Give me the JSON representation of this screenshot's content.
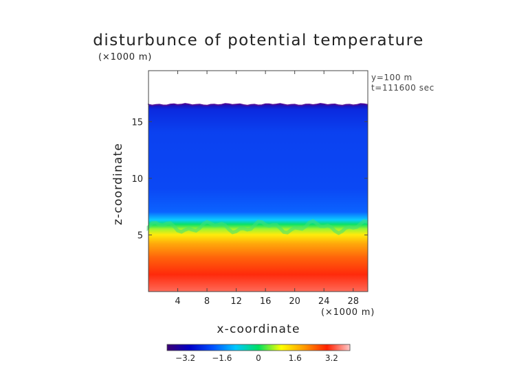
{
  "chart_data": {
    "type": "heatmap",
    "title": "disturbunce of potential temperature",
    "y_unit_label": "(×1000 m)",
    "x_unit_label": "(×1000 m)",
    "xlabel": "x-coordinate",
    "ylabel": "z-coordinate",
    "annotations": [
      "y=100 m",
      "t=111600 sec"
    ],
    "xlim": [
      0,
      30
    ],
    "ylim": [
      0,
      19.5
    ],
    "x_ticks": [
      4,
      8,
      12,
      16,
      20,
      24,
      28
    ],
    "y_ticks": [
      5,
      10,
      15
    ],
    "data_top_z": 16.5,
    "colorbar": {
      "range": [
        -4,
        4
      ],
      "tick_values": [
        -3.2,
        -1.6,
        0,
        1.6,
        3.2
      ],
      "tick_labels": [
        "−3.2",
        "−1.6",
        "0",
        "1.6",
        "3.2"
      ]
    },
    "profile": [
      {
        "z": 0.0,
        "value": 3.4
      },
      {
        "z": 1.5,
        "value": 3.0
      },
      {
        "z": 3.0,
        "value": 2.5
      },
      {
        "z": 4.2,
        "value": 1.9
      },
      {
        "z": 5.0,
        "value": 1.2
      },
      {
        "z": 5.5,
        "value": 0.6
      },
      {
        "z": 5.9,
        "value": 0.0
      },
      {
        "z": 6.3,
        "value": -1.0
      },
      {
        "z": 7.0,
        "value": -1.9
      },
      {
        "z": 9.0,
        "value": -2.2
      },
      {
        "z": 14.0,
        "value": -2.3
      },
      {
        "z": 16.0,
        "value": -2.6
      },
      {
        "z": 16.5,
        "value": -3.4
      }
    ],
    "colorscale": [
      "#3c0073",
      "#0000c8",
      "#0050ff",
      "#00c8ff",
      "#00e060",
      "#ffff00",
      "#ff9a00",
      "#ff2000",
      "#ffc8c8"
    ]
  }
}
